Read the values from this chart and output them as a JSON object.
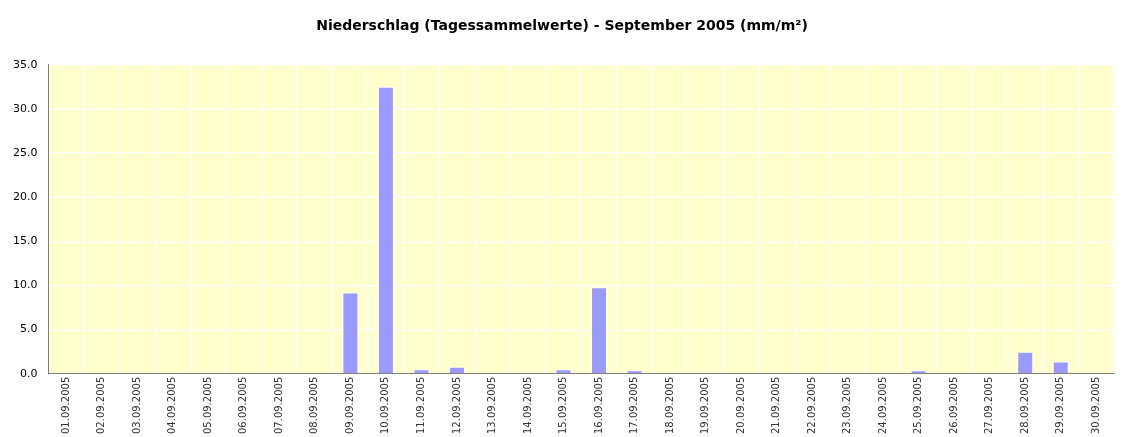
{
  "chart_data": {
    "type": "bar",
    "title": "Niederschlag (Tagessammelwerte) - September 2005 (mm/m²)",
    "categories": [
      "01.09.2005",
      "02.09.2005",
      "03.09.2005",
      "04.09.2005",
      "05.09.2005",
      "06.09.2005",
      "07.09.2005",
      "08.09.2005",
      "09.09.2005",
      "10.09.2005",
      "11.09.2005",
      "12.09.2005",
      "13.09.2005",
      "14.09.2005",
      "15.09.2005",
      "16.09.2005",
      "17.09.2005",
      "18.09.2005",
      "19.09.2005",
      "20.09.2005",
      "21.09.2005",
      "22.09.2005",
      "23.09.2005",
      "24.09.2005",
      "25.09.2005",
      "26.09.2005",
      "27.09.2005",
      "28.09.2005",
      "29.09.2005",
      "30.09.2005"
    ],
    "values": [
      0,
      0,
      0,
      0,
      0,
      0,
      0,
      0,
      9.2,
      32.5,
      0.5,
      0.8,
      0,
      0,
      0.5,
      9.8,
      0.4,
      0,
      0,
      0,
      0,
      0,
      0,
      0,
      0.4,
      0,
      0,
      2.5,
      1.4,
      0
    ],
    "color": "#9999ff",
    "ylim": [
      0,
      35
    ],
    "yticks": [
      {
        "value": 0,
        "label": "0.0"
      },
      {
        "value": 5,
        "label": "5.0"
      },
      {
        "value": 10,
        "label": "10.0"
      },
      {
        "value": 15,
        "label": "15.0"
      },
      {
        "value": 20,
        "label": "20.0"
      },
      {
        "value": 25,
        "label": "25.0"
      },
      {
        "value": 30,
        "label": "30.0"
      },
      {
        "value": 35,
        "label": "35.0"
      }
    ],
    "grid": true,
    "legend": false
  }
}
